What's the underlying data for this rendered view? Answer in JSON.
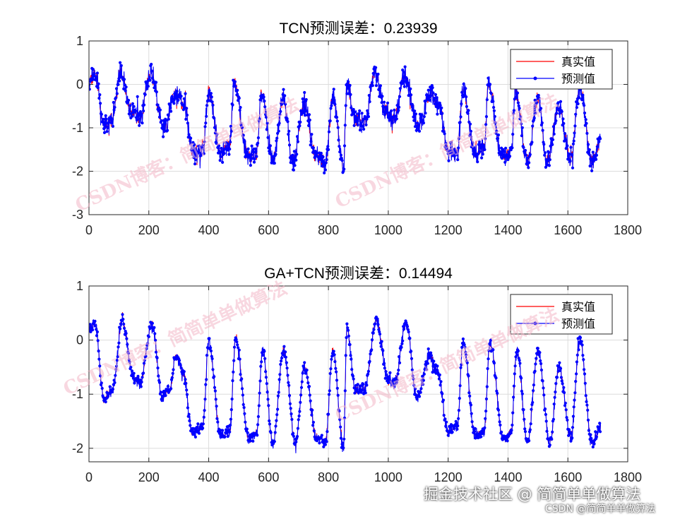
{
  "chart_data": [
    {
      "type": "line",
      "title": "TCN预测误差：0.23939",
      "xlim": [
        0,
        1800
      ],
      "ylim": [
        -3,
        1
      ],
      "xticks": [
        0,
        200,
        400,
        600,
        800,
        1000,
        1200,
        1400,
        1600,
        1800
      ],
      "yticks": [
        1,
        0,
        -1,
        -2,
        -3
      ],
      "grid": true,
      "legend_position": "top-right",
      "series": [
        {
          "name": "真实值",
          "color": "#ff0000",
          "marker": "none"
        },
        {
          "name": "预测值",
          "color": "#0000ff",
          "marker": "dot"
        }
      ],
      "n_points": 1710,
      "noise": 0.17,
      "profile": [
        {
          "x": 0,
          "y": 0.1
        },
        {
          "x": 20,
          "y": 0.25
        },
        {
          "x": 50,
          "y": -0.9
        },
        {
          "x": 80,
          "y": -0.8
        },
        {
          "x": 105,
          "y": 0.3
        },
        {
          "x": 140,
          "y": -0.6
        },
        {
          "x": 170,
          "y": -0.8
        },
        {
          "x": 205,
          "y": 0.25
        },
        {
          "x": 250,
          "y": -1.0
        },
        {
          "x": 290,
          "y": -0.2
        },
        {
          "x": 320,
          "y": -0.5
        },
        {
          "x": 345,
          "y": -1.55
        },
        {
          "x": 380,
          "y": -1.6
        },
        {
          "x": 400,
          "y": -0.15
        },
        {
          "x": 440,
          "y": -1.6
        },
        {
          "x": 470,
          "y": -1.4
        },
        {
          "x": 485,
          "y": 0.0
        },
        {
          "x": 530,
          "y": -1.65
        },
        {
          "x": 560,
          "y": -1.6
        },
        {
          "x": 575,
          "y": -0.2
        },
        {
          "x": 615,
          "y": -1.75
        },
        {
          "x": 650,
          "y": -0.3
        },
        {
          "x": 680,
          "y": -1.8
        },
        {
          "x": 720,
          "y": -0.5
        },
        {
          "x": 760,
          "y": -1.7
        },
        {
          "x": 790,
          "y": -1.8
        },
        {
          "x": 815,
          "y": -0.3
        },
        {
          "x": 850,
          "y": -1.9
        },
        {
          "x": 862,
          "y": 0.0
        },
        {
          "x": 890,
          "y": -0.8
        },
        {
          "x": 920,
          "y": -0.9
        },
        {
          "x": 955,
          "y": 0.25
        },
        {
          "x": 990,
          "y": -0.6
        },
        {
          "x": 1020,
          "y": -0.8
        },
        {
          "x": 1055,
          "y": 0.2
        },
        {
          "x": 1100,
          "y": -1.0
        },
        {
          "x": 1140,
          "y": -0.2
        },
        {
          "x": 1170,
          "y": -0.5
        },
        {
          "x": 1200,
          "y": -1.55
        },
        {
          "x": 1230,
          "y": -1.6
        },
        {
          "x": 1250,
          "y": -0.15
        },
        {
          "x": 1290,
          "y": -1.6
        },
        {
          "x": 1320,
          "y": -1.4
        },
        {
          "x": 1335,
          "y": 0.0
        },
        {
          "x": 1380,
          "y": -1.65
        },
        {
          "x": 1410,
          "y": -1.6
        },
        {
          "x": 1425,
          "y": -0.2
        },
        {
          "x": 1465,
          "y": -1.75
        },
        {
          "x": 1500,
          "y": -0.3
        },
        {
          "x": 1530,
          "y": -1.8
        },
        {
          "x": 1570,
          "y": -0.5
        },
        {
          "x": 1610,
          "y": -1.7
        },
        {
          "x": 1640,
          "y": -0.05
        },
        {
          "x": 1680,
          "y": -1.8
        },
        {
          "x": 1710,
          "y": -1.3
        }
      ]
    },
    {
      "type": "line",
      "title": "GA+TCN预测误差：0.14494",
      "xlim": [
        0,
        1800
      ],
      "ylim": [
        -2.25,
        1
      ],
      "xticks": [
        0,
        200,
        400,
        600,
        800,
        1000,
        1200,
        1400,
        1600,
        1800
      ],
      "yticks": [
        1,
        0,
        -1,
        -2
      ],
      "grid": true,
      "legend_position": "top-right",
      "series": [
        {
          "name": "真实值",
          "color": "#ff0000",
          "marker": "none"
        },
        {
          "name": "预测值",
          "color": "#0000ff",
          "marker": "dot"
        }
      ],
      "n_points": 1710,
      "noise": 0.08,
      "profile": [
        {
          "x": 0,
          "y": 0.2
        },
        {
          "x": 20,
          "y": 0.3
        },
        {
          "x": 50,
          "y": -1.1
        },
        {
          "x": 80,
          "y": -0.9
        },
        {
          "x": 110,
          "y": 0.35
        },
        {
          "x": 150,
          "y": -0.7
        },
        {
          "x": 170,
          "y": -0.8
        },
        {
          "x": 210,
          "y": 0.3
        },
        {
          "x": 245,
          "y": -1.05
        },
        {
          "x": 270,
          "y": -0.9
        },
        {
          "x": 290,
          "y": -0.3
        },
        {
          "x": 315,
          "y": -0.6
        },
        {
          "x": 345,
          "y": -1.7
        },
        {
          "x": 380,
          "y": -1.6
        },
        {
          "x": 400,
          "y": -0.05
        },
        {
          "x": 440,
          "y": -1.75
        },
        {
          "x": 470,
          "y": -1.7
        },
        {
          "x": 490,
          "y": 0.0
        },
        {
          "x": 535,
          "y": -1.85
        },
        {
          "x": 560,
          "y": -1.7
        },
        {
          "x": 580,
          "y": -0.2
        },
        {
          "x": 615,
          "y": -1.9
        },
        {
          "x": 650,
          "y": -0.2
        },
        {
          "x": 690,
          "y": -1.9
        },
        {
          "x": 720,
          "y": -0.5
        },
        {
          "x": 760,
          "y": -1.8
        },
        {
          "x": 790,
          "y": -1.9
        },
        {
          "x": 815,
          "y": -0.2
        },
        {
          "x": 850,
          "y": -2.0
        },
        {
          "x": 862,
          "y": 0.2
        },
        {
          "x": 890,
          "y": -0.9
        },
        {
          "x": 920,
          "y": -0.9
        },
        {
          "x": 960,
          "y": 0.35
        },
        {
          "x": 1000,
          "y": -0.7
        },
        {
          "x": 1020,
          "y": -0.8
        },
        {
          "x": 1060,
          "y": 0.3
        },
        {
          "x": 1095,
          "y": -1.05
        },
        {
          "x": 1140,
          "y": -0.3
        },
        {
          "x": 1165,
          "y": -0.6
        },
        {
          "x": 1200,
          "y": -1.7
        },
        {
          "x": 1230,
          "y": -1.6
        },
        {
          "x": 1250,
          "y": -0.05
        },
        {
          "x": 1290,
          "y": -1.75
        },
        {
          "x": 1320,
          "y": -1.7
        },
        {
          "x": 1340,
          "y": 0.0
        },
        {
          "x": 1385,
          "y": -1.85
        },
        {
          "x": 1410,
          "y": -1.7
        },
        {
          "x": 1430,
          "y": -0.2
        },
        {
          "x": 1465,
          "y": -1.9
        },
        {
          "x": 1500,
          "y": -0.2
        },
        {
          "x": 1540,
          "y": -1.9
        },
        {
          "x": 1570,
          "y": -0.5
        },
        {
          "x": 1610,
          "y": -1.8
        },
        {
          "x": 1640,
          "y": 0.0
        },
        {
          "x": 1680,
          "y": -1.9
        },
        {
          "x": 1710,
          "y": -1.6
        }
      ]
    }
  ],
  "watermark_text": "CSDN博客：简简单单做算法",
  "footer": {
    "line1": "掘金技术社区 @ 简简单单做算法",
    "line2": "CSDN @简简单单做算法"
  }
}
